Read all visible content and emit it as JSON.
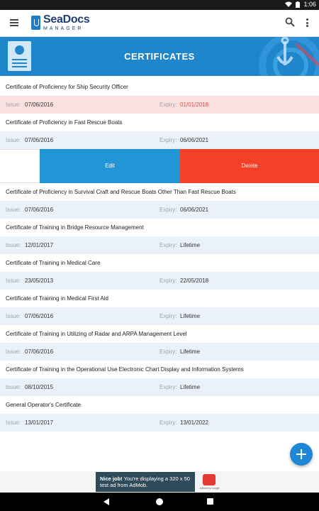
{
  "status_bar": {
    "time": "1:06"
  },
  "app_bar": {
    "logo_title": "SeaDocs",
    "logo_subtitle": "MANAGER",
    "icons": [
      "menu-icon",
      "search-icon",
      "more-vert-icon"
    ]
  },
  "banner": {
    "title": "CERTIFICATES"
  },
  "labels": {
    "issue": "Issue:",
    "expiry": "Expiry:"
  },
  "certificates": [
    {
      "name": "Certificate of Proficiency for Ship Security Officer",
      "issue": "07/06/2016",
      "expiry": "01/01/2018",
      "expired": true
    },
    {
      "name": "Certificate of Proficiency in Fast Rescue Boats",
      "issue": "07/06/2016",
      "expiry": "06/06/2021",
      "expired": false
    },
    {
      "name": "Certificate of Proficiency in Survival Craft and Rescue Boats Other Than Fast Rescue Boats",
      "issue": "07/06/2016",
      "expiry": "06/06/2021",
      "expired": false
    },
    {
      "name": "Certificate of Training in Bridge Resource Management",
      "issue": "12/01/2017",
      "expiry": "Lifetime",
      "expired": false
    },
    {
      "name": "Certificate of Training in Medical Care",
      "issue": "23/05/2013",
      "expiry": "22/05/2018",
      "expired": false
    },
    {
      "name": "Certificate of Training in Medical First Aid",
      "issue": "07/06/2016",
      "expiry": "Lifetime",
      "expired": false
    },
    {
      "name": "Certificate of Training in Utilizing of Radar and ARPA Management Level",
      "issue": "07/06/2016",
      "expiry": "Lifetime",
      "expired": false
    },
    {
      "name": "Certificate of Training in the Operational Use Electronic Chart Display and Information Systems",
      "issue": "08/10/2015",
      "expiry": "Lifetime",
      "expired": false
    },
    {
      "name": "General Operator's Certificate",
      "issue": "13/01/2017",
      "expiry": "13/01/2022",
      "expired": false
    }
  ],
  "swipe_actions": {
    "edit": "Edit",
    "delete": "Delete"
  },
  "ad": {
    "headline": "Nice job!",
    "text": "You're displaying a 320 x 50 test ad from AdMob.",
    "badge": "AdMob by Google"
  },
  "colors": {
    "primary": "#1f86cc",
    "edit": "#2196d6",
    "delete": "#f44026",
    "expired_bg": "#fbe0e0",
    "expired_text": "#e04848"
  }
}
